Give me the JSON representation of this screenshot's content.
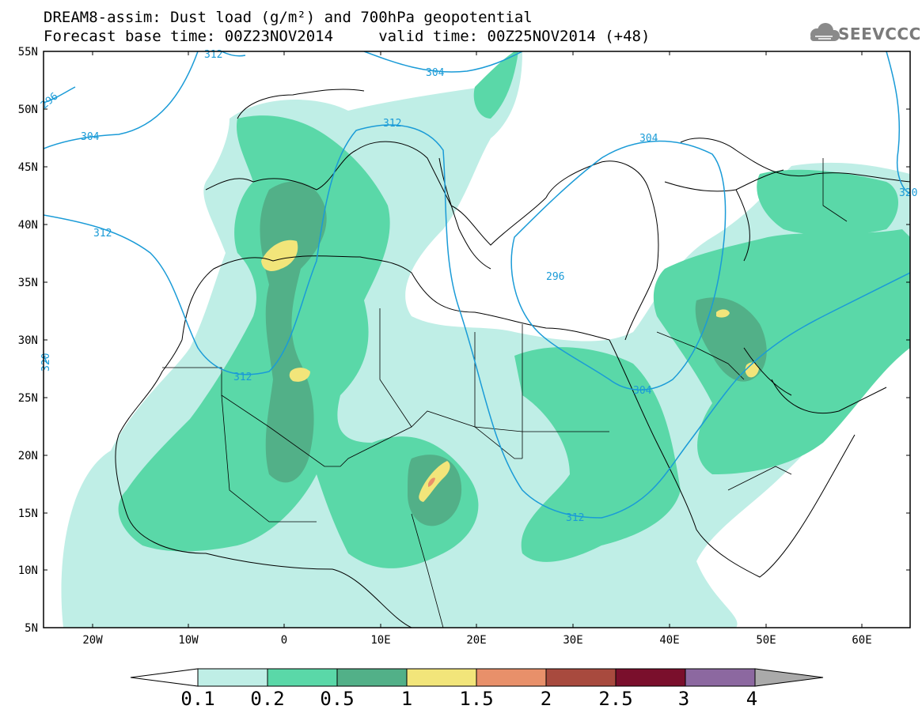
{
  "title_line1": "DREAM8-assim: Dust load (g/m²) and 700hPa geopotential",
  "title_line2": "Forecast base time: 00Z23NOV2014     valid time: 00Z25NOV2014 (+48)",
  "logo_text": "SEEVCCC",
  "map": {
    "lat_labels": [
      "55N",
      "50N",
      "45N",
      "40N",
      "35N",
      "30N",
      "25N",
      "20N",
      "15N",
      "10N",
      "5N"
    ],
    "lon_labels": [
      "20W",
      "10W",
      "0",
      "10E",
      "20E",
      "30E",
      "40E",
      "50E",
      "60E"
    ],
    "contour_labels": [
      "296",
      "304",
      "304",
      "312",
      "312",
      "312",
      "304",
      "312",
      "296",
      "304",
      "312",
      "320",
      "320"
    ]
  },
  "colorbar": {
    "ticks": [
      "0.1",
      "0.2",
      "0.5",
      "1",
      "1.5",
      "2",
      "2.5",
      "3",
      "4"
    ],
    "colors": [
      "#bfeee6",
      "#5ad8a8",
      "#52b088",
      "#f2e57a",
      "#e8906a",
      "#a84a3e",
      "#7a0f2c",
      "#8c68a0"
    ],
    "under_color": "#ffffff",
    "over_color": "#aaaaaa"
  },
  "dust_colors": {
    "c1": "#bfeee6",
    "c2": "#5ad8a8",
    "c3": "#52b088",
    "c4": "#f2e57a",
    "c5": "#e8906a"
  },
  "contour_color": "#1a9bd7"
}
